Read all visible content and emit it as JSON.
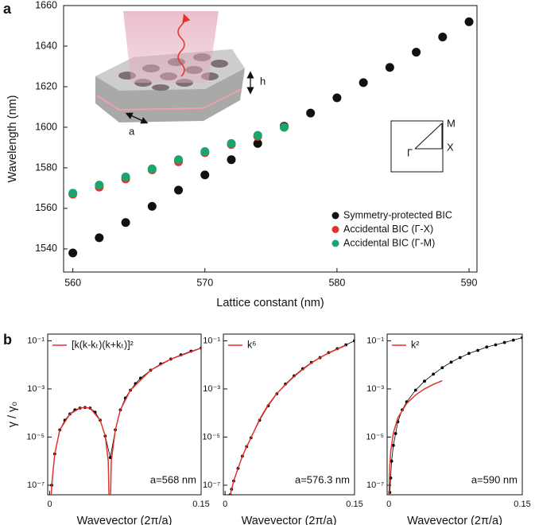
{
  "panel_labels": [
    "a",
    "b"
  ],
  "chart_data": [
    {
      "type": "scatter",
      "xlabel": "Lattice constant (nm)",
      "ylabel": "Wavelength (nm)",
      "xlim": [
        559.3,
        590.6
      ],
      "ylim": [
        1528.6,
        1660
      ],
      "xticks": [
        560,
        570,
        580,
        590
      ],
      "yticks": [
        1540,
        1560,
        1580,
        1600,
        1620,
        1640,
        1660
      ],
      "legend": "lower right",
      "annotations": [
        "h",
        "a",
        "M",
        "X",
        "Γ"
      ],
      "series": [
        {
          "name": "Symmetry-protected BIC",
          "color": "#111111",
          "x": [
            560,
            562,
            564,
            566,
            568,
            570,
            572,
            574,
            576,
            578,
            580,
            582,
            584,
            586,
            588,
            590
          ],
          "values": [
            1538,
            1545.5,
            1553,
            1561,
            1569,
            1576.5,
            1584,
            1592,
            1600.5,
            1607,
            1614.5,
            1622,
            1629.5,
            1637,
            1644.5,
            1652
          ]
        },
        {
          "name": "Accidental BIC (Γ-X)",
          "color": "#e0332b",
          "x": [
            560,
            562,
            564,
            566,
            568,
            570,
            572,
            574,
            576
          ],
          "values": [
            1567,
            1570.5,
            1574.5,
            1579,
            1583,
            1587.5,
            1591.5,
            1595.5,
            1600
          ]
        },
        {
          "name": "Accidental BIC (Γ-M)",
          "color": "#19a56b",
          "x": [
            560,
            562,
            564,
            566,
            568,
            570,
            572,
            574,
            576
          ],
          "values": [
            1567.5,
            1571.5,
            1575.5,
            1579.5,
            1584,
            1588,
            1592,
            1596,
            1600
          ]
        }
      ]
    },
    {
      "type": "line",
      "log_y": true,
      "xlabel": "Wavevector (2π/a)",
      "ylabel": "γ / γ₀",
      "annotation": "a=568 nm",
      "xlim": [
        -0.002,
        0.15
      ],
      "ylim": [
        4e-08,
        0.19
      ],
      "xticks": [
        0,
        0.15
      ],
      "yticks": [
        {
          "value": 0.1,
          "label": "10⁻¹"
        },
        {
          "value": 0.001,
          "label": "10⁻³"
        },
        {
          "value": 1e-05,
          "label": "10⁻⁵"
        },
        {
          "value": 1e-07,
          "label": "10⁻⁷"
        }
      ],
      "legend": "upper left",
      "series": [
        {
          "color": "#000000",
          "marker": "o",
          "x": [
            0.002,
            0.005,
            0.01,
            0.015,
            0.02,
            0.025,
            0.03,
            0.035,
            0.04,
            0.045,
            0.05,
            0.055,
            0.06,
            0.065,
            0.07,
            0.075,
            0.08,
            0.085,
            0.09,
            0.1,
            0.11,
            0.12,
            0.13,
            0.14,
            0.15
          ],
          "values": [
            1e-07,
            2e-06,
            2e-05,
            5e-05,
            9.1e-05,
            0.000135,
            0.00016,
            0.00017,
            0.00016,
            0.000107,
            5e-05,
            1.1e-05,
            1.4e-06,
            2e-05,
            0.000135,
            0.00042,
            0.00089,
            0.00166,
            0.0028,
            0.006,
            0.011,
            0.0174,
            0.026,
            0.037,
            0.05
          ]
        },
        {
          "name": "[k(k-kₜ)(k+kₜ)]²",
          "color": "#e0332b",
          "x": [
            0.0002,
            0.002,
            0.005,
            0.01,
            0.02,
            0.03,
            0.035,
            0.04,
            0.05,
            0.055,
            0.058,
            0.0595,
            0.061,
            0.065,
            0.07,
            0.08,
            0.1,
            0.12,
            0.15
          ],
          "values": [
            3e-09,
            1e-07,
            2e-06,
            2e-05,
            9.1e-05,
            0.00016,
            0.00017,
            0.00016,
            5e-05,
            1.1e-05,
            1e-06,
            1e-09,
            1e-06,
            2e-05,
            0.000135,
            0.00089,
            0.006,
            0.0174,
            0.05
          ]
        }
      ]
    },
    {
      "type": "line",
      "log_y": true,
      "xlabel": "Wavevector (2π/a)",
      "annotation": "a=576.3 nm",
      "xlim": [
        -0.002,
        0.15
      ],
      "ylim": [
        4e-08,
        0.19
      ],
      "xticks": [
        0,
        0.15
      ],
      "yticks": [
        {
          "value": 0.1,
          "label": "10⁻¹"
        },
        {
          "value": 0.001,
          "label": "10⁻³"
        },
        {
          "value": 1e-05,
          "label": "10⁻⁵"
        },
        {
          "value": 1e-07,
          "label": "10⁻⁷"
        }
      ],
      "legend": "upper left",
      "series": [
        {
          "color": "#000000",
          "marker": "o",
          "x": [
            0.006,
            0.0075,
            0.01,
            0.015,
            0.02,
            0.025,
            0.03,
            0.04,
            0.05,
            0.06,
            0.07,
            0.08,
            0.09,
            0.1,
            0.11,
            0.12,
            0.13,
            0.14,
            0.15
          ],
          "values": [
            4e-08,
            6.8e-08,
            1.5e-07,
            5e-07,
            1.6e-06,
            4e-06,
            9.3e-06,
            5e-05,
            0.0002,
            0.00063,
            0.0016,
            0.0035,
            0.0069,
            0.0126,
            0.02,
            0.032,
            0.047,
            0.068,
            0.1
          ]
        },
        {
          "name": "k⁶",
          "color": "#e0332b",
          "x": [
            0.006,
            0.0075,
            0.01,
            0.015,
            0.02,
            0.025,
            0.03,
            0.04,
            0.05,
            0.06,
            0.07,
            0.08,
            0.09,
            0.1,
            0.11,
            0.12,
            0.13,
            0.14
          ],
          "values": [
            4e-08,
            6.8e-08,
            1.5e-07,
            5e-07,
            1.6e-06,
            4e-06,
            9.3e-06,
            5.5e-05,
            0.00022,
            0.00065,
            0.0015,
            0.0033,
            0.0065,
            0.012,
            0.02,
            0.031,
            0.045,
            0.065
          ]
        }
      ]
    },
    {
      "type": "line",
      "log_y": true,
      "xlabel": "Wavevector (2π/a)",
      "annotation": "a=590 nm",
      "xlim": [
        -0.002,
        0.15
      ],
      "ylim": [
        4e-08,
        0.19
      ],
      "xticks": [
        0,
        0.15
      ],
      "yticks": [
        {
          "value": 0.1,
          "label": "10⁻¹"
        },
        {
          "value": 0.001,
          "label": "10⁻³"
        },
        {
          "value": 1e-05,
          "label": "10⁻⁵"
        },
        {
          "value": 1e-07,
          "label": "10⁻⁷"
        }
      ],
      "legend": "upper left",
      "series": [
        {
          "color": "#000000",
          "marker": "o",
          "x": [
            0.001,
            0.002,
            0.003,
            0.005,
            0.0075,
            0.01,
            0.015,
            0.02,
            0.03,
            0.04,
            0.05,
            0.06,
            0.07,
            0.08,
            0.09,
            0.1,
            0.11,
            0.12,
            0.13,
            0.14,
            0.15
          ],
          "values": [
            5e-08,
            2e-07,
            1e-06,
            4.5e-06,
            1.4e-05,
            4.3e-05,
            0.000135,
            0.00029,
            0.00089,
            0.0021,
            0.0041,
            0.0076,
            0.013,
            0.02,
            0.03,
            0.04,
            0.055,
            0.068,
            0.085,
            0.107,
            0.135
          ]
        },
        {
          "name": "k²",
          "color": "#e0332b",
          "x": [
            0.0002,
            0.0005,
            0.001,
            0.002,
            0.005,
            0.01,
            0.02,
            0.03,
            0.04,
            0.05,
            0.06
          ],
          "values": [
            1e-08,
            1.6e-07,
            6.3e-07,
            2.5e-06,
            1.5e-05,
            6.3e-05,
            0.00025,
            0.00056,
            0.001,
            0.00155,
            0.0022
          ]
        }
      ]
    }
  ]
}
